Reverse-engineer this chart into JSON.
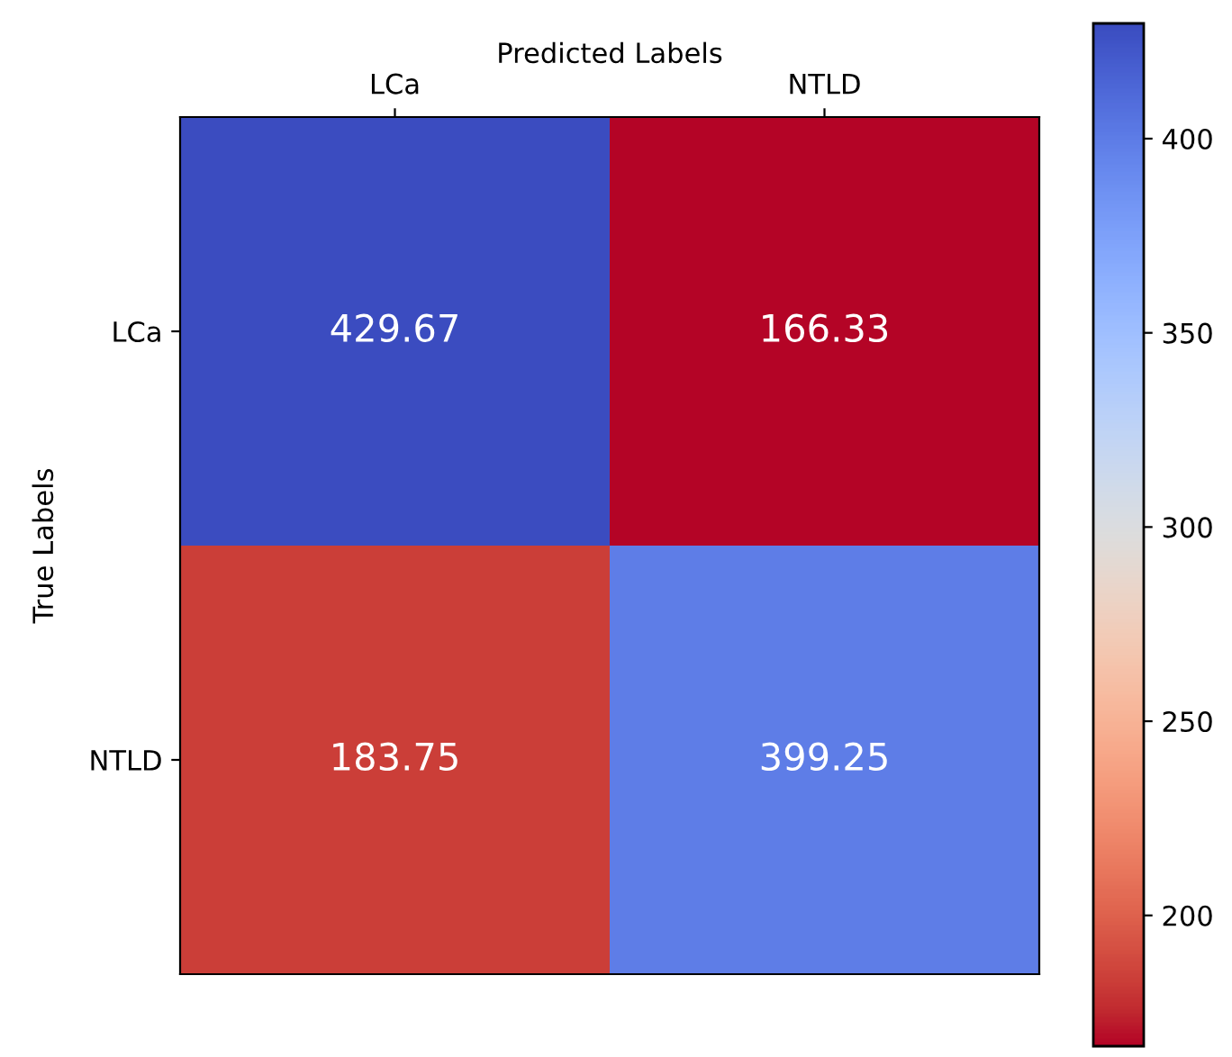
{
  "chart_data": {
    "type": "heatmap",
    "xlabel": "Predicted Labels",
    "ylabel": "True Labels",
    "categories": [
      "LCa",
      "NTLD"
    ],
    "y_categories": [
      "LCa",
      "NTLD"
    ],
    "cells": [
      [
        429.67,
        166.33
      ],
      [
        183.75,
        399.25
      ]
    ],
    "data_labels": true,
    "clim": [
      166.33,
      429.67
    ],
    "cticks": [
      200,
      250,
      300,
      350,
      400
    ],
    "grid": false
  }
}
